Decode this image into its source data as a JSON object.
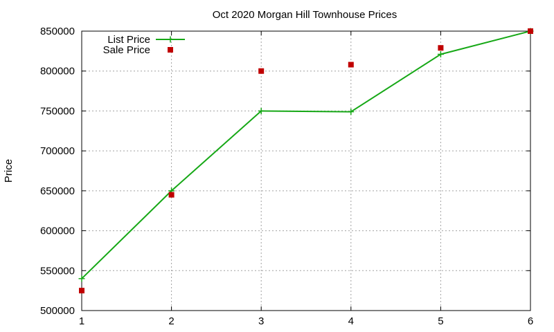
{
  "chart_data": {
    "type": "line",
    "title": "Oct 2020 Morgan Hill Townhouse Prices",
    "xlabel": "",
    "ylabel": "Price",
    "xlim": [
      1,
      6
    ],
    "ylim": [
      500000,
      850000
    ],
    "x_ticks": [
      "1",
      "2",
      "3",
      "4",
      "5",
      "6"
    ],
    "y_ticks": [
      "500000",
      "550000",
      "600000",
      "650000",
      "700000",
      "750000",
      "800000",
      "850000"
    ],
    "grid": true,
    "legend_position": "top-left",
    "series": [
      {
        "name": "List Price",
        "style": "line-points",
        "marker": "plus",
        "color": "#16a816",
        "x": [
          1,
          2,
          3,
          4,
          5,
          6
        ],
        "y": [
          540000,
          650000,
          750000,
          749000,
          821000,
          850000
        ]
      },
      {
        "name": "Sale Price",
        "style": "points",
        "marker": "square",
        "color": "#c00000",
        "x": [
          1,
          2,
          3,
          4,
          5,
          6
        ],
        "y": [
          525000,
          645000,
          800000,
          808000,
          829000,
          850000
        ]
      }
    ]
  }
}
